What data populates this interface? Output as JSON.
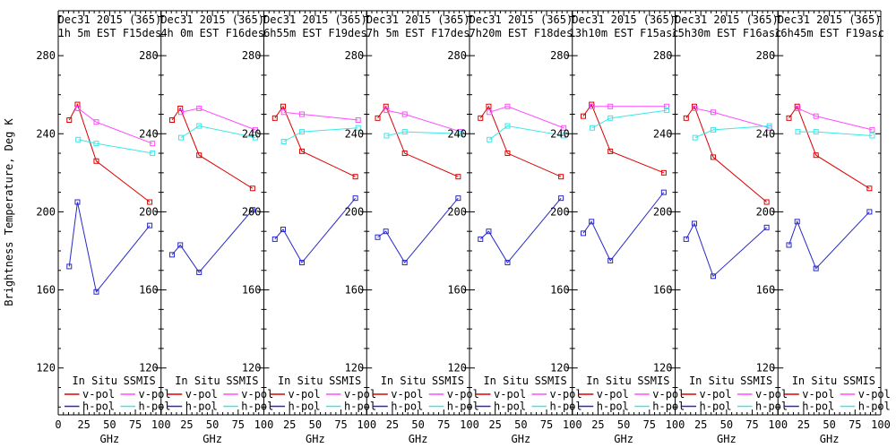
{
  "page": {
    "background": "#ffffff",
    "frame_color": "#000000"
  },
  "chart_data": {
    "type": "line",
    "title": "",
    "ylabel": "Brightness Temperature, Deg K",
    "xlabel": "GHz",
    "xlim": [
      0,
      100
    ],
    "ylim": [
      96,
      303
    ],
    "x_ticks": [
      0,
      25,
      50,
      75,
      100
    ],
    "x_minor_step": 5,
    "y_ticks": [
      280,
      240,
      200,
      160,
      120
    ],
    "y_minor_step": 10,
    "grid": false,
    "legend_position": "bottom-inside-each-panel",
    "insitu_x": [
      10.7,
      18.7,
      37,
      89
    ],
    "ssmis_x": [
      19.35,
      37,
      91.655
    ],
    "series_defs": [
      {
        "key": "insitu_v",
        "group": "In Situ",
        "label": "v-pol",
        "color": "#dc0000",
        "x_key": "insitu_x"
      },
      {
        "key": "insitu_h",
        "group": "In Situ",
        "label": "h-pol",
        "color": "#2828c8",
        "x_key": "insitu_x"
      },
      {
        "key": "ssmis_v",
        "group": "SSMIS",
        "label": "v-pol",
        "color": "#ff4cff",
        "x_key": "ssmis_x"
      },
      {
        "key": "ssmis_h",
        "group": "SSMIS",
        "label": "h-pol",
        "color": "#38e8e8",
        "x_key": "ssmis_x"
      }
    ],
    "legend": {
      "group1": "In Situ",
      "group2": "SSMIS",
      "vpol_label": "v-pol",
      "hpol_label": "h-pol"
    },
    "panels": [
      {
        "title_line1": "Dec31 2015 (365)",
        "title_line2": "1h 5m EST F15des",
        "insitu_v": [
          247,
          255,
          226,
          205
        ],
        "insitu_h": [
          172,
          205,
          159,
          193
        ],
        "ssmis_v": [
          253,
          246,
          235
        ],
        "ssmis_h": [
          237,
          235,
          230
        ]
      },
      {
        "title_line1": "Dec31 2015 (365)",
        "title_line2": "4h 0m EST F16des",
        "insitu_v": [
          247,
          253,
          229,
          212
        ],
        "insitu_h": [
          178,
          183,
          169,
          201
        ],
        "ssmis_v": [
          251,
          253,
          242
        ],
        "ssmis_h": [
          238,
          244,
          238
        ]
      },
      {
        "title_line1": "Dec31 2015 (365)",
        "title_line2": "6h55m EST F19des",
        "insitu_v": [
          248,
          254,
          231,
          218
        ],
        "insitu_h": [
          186,
          191,
          174,
          207
        ],
        "ssmis_v": [
          251,
          250,
          247
        ],
        "ssmis_h": [
          236,
          241,
          243
        ]
      },
      {
        "title_line1": "Dec31 2015 (365)",
        "title_line2": "7h 5m EST F17des",
        "insitu_v": [
          248,
          254,
          230,
          218
        ],
        "insitu_h": [
          187,
          190,
          174,
          207
        ],
        "ssmis_v": [
          252,
          250,
          241
        ],
        "ssmis_h": [
          239,
          241,
          240
        ]
      },
      {
        "title_line1": "Dec31 2015 (365)",
        "title_line2": "7h20m EST F18des",
        "insitu_v": [
          248,
          254,
          230,
          218
        ],
        "insitu_h": [
          186,
          190,
          174,
          207
        ],
        "ssmis_v": [
          251,
          254,
          243
        ],
        "ssmis_h": [
          237,
          244,
          239
        ]
      },
      {
        "title_line1": "Dec31 2015 (365)",
        "title_line2": "13h10m EST F15asc",
        "insitu_v": [
          249,
          255,
          231,
          220
        ],
        "insitu_h": [
          189,
          195,
          175,
          210
        ],
        "ssmis_v": [
          254,
          254,
          254
        ],
        "ssmis_h": [
          243,
          248,
          252
        ]
      },
      {
        "title_line1": "Dec31 2015 (365)",
        "title_line2": "15h30m EST F16asc",
        "insitu_v": [
          248,
          254,
          228,
          205
        ],
        "insitu_h": [
          186,
          194,
          167,
          192
        ],
        "ssmis_v": [
          253,
          251,
          243
        ],
        "ssmis_h": [
          238,
          242,
          244
        ]
      },
      {
        "title_line1": "Dec31 2015 (365)",
        "title_line2": "16h45m EST F19asc",
        "insitu_v": [
          248,
          254,
          229,
          212
        ],
        "insitu_h": [
          183,
          195,
          171,
          200
        ],
        "ssmis_v": [
          253,
          249,
          242
        ],
        "ssmis_h": [
          241,
          241,
          239
        ]
      }
    ]
  }
}
